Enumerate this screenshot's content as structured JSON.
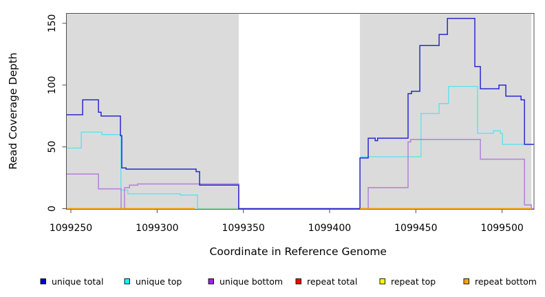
{
  "chart_data": {
    "type": "line",
    "subtype": "step-coverage-plot",
    "title": "",
    "xlabel": "Coordinate in Reference Genome",
    "ylabel": "Read Coverage Depth",
    "xlim": [
      1099247.6,
      1099518.3
    ],
    "ylim": [
      0,
      158
    ],
    "grid": false,
    "x_ticks": [
      1099250,
      1099300,
      1099350,
      1099400,
      1099450,
      1099500
    ],
    "x_tick_labels": [
      "1099250",
      "1099300",
      "1099350",
      "1099400",
      "1099450",
      "1099500"
    ],
    "y_ticks": [
      0,
      50,
      100,
      150
    ],
    "y_tick_labels": [
      "0",
      "50",
      "100",
      "150"
    ],
    "shade_color": "#DBDBDB",
    "box_color": "#4D4D4D",
    "shaded_regions": [
      {
        "x0": 1099247.6,
        "x1": 1099347.3
      },
      {
        "x0": 1099417.6,
        "x1": 1099517.0
      }
    ],
    "series": [
      {
        "name": "repeat total",
        "color": "#E60000",
        "width": 1.2,
        "in_legend": true,
        "note": "all zero; hidden beneath repeat bottom line",
        "segments": [
          [
            [
              1099247.6,
              0
            ],
            [
              1099321.8,
              0
            ]
          ],
          [
            [
              1099417.6,
              0
            ],
            [
              1099517.0,
              0
            ]
          ]
        ]
      },
      {
        "name": "repeat top",
        "color": "#F0F000",
        "width": 1.2,
        "in_legend": true,
        "note": "all zero; hidden beneath repeat bottom line",
        "segments": [
          [
            [
              1099247.6,
              0
            ],
            [
              1099321.8,
              0
            ]
          ],
          [
            [
              1099417.6,
              0
            ],
            [
              1099517.0,
              0
            ]
          ]
        ]
      },
      {
        "name": "unique top",
        "color": "#4FE4EC",
        "width": 1.3,
        "in_legend": true,
        "segments": [
          [
            [
              1099247.6,
              49
            ],
            [
              1099256.0,
              62
            ],
            [
              1099268.0,
              60
            ],
            [
              1099279.0,
              15
            ],
            [
              1099283.0,
              12
            ],
            [
              1099313.4,
              11
            ],
            [
              1099323.4,
              0
            ],
            [
              1099347.3,
              0
            ]
          ],
          [
            [
              1099417.6,
              42
            ],
            [
              1099453.0,
              77
            ],
            [
              1099463.5,
              85
            ],
            [
              1099469.0,
              99
            ],
            [
              1099485.8,
              61
            ],
            [
              1099495.0,
              63
            ],
            [
              1099499.0,
              61
            ],
            [
              1099500.2,
              52
            ],
            [
              1099518.3,
              52
            ]
          ]
        ]
      },
      {
        "name": "zero overlap",
        "color": "#96D89B",
        "width": 1.3,
        "in_legend": false,
        "note": "pale green artifact where zero-depth lines overlap (1099323-1099347)",
        "segments": [
          [
            [
              1099323.4,
              0
            ],
            [
              1099347.3,
              0
            ]
          ]
        ]
      },
      {
        "name": "unique bottom",
        "color": "#B484DC",
        "width": 1.6,
        "in_legend": true,
        "segments": [
          [
            [
              1099247.6,
              28
            ],
            [
              1099266.0,
              16
            ],
            [
              1099279.1,
              0
            ],
            [
              1099281.1,
              17
            ],
            [
              1099284.0,
              19
            ],
            [
              1099288.7,
              20
            ],
            [
              1099347.3,
              0
            ],
            [
              1099422.4,
              17
            ],
            [
              1099445.5,
              54
            ],
            [
              1099447.0,
              56
            ],
            [
              1099487.4,
              40
            ],
            [
              1099513.0,
              3
            ],
            [
              1099517.0,
              0
            ],
            [
              1099518.3,
              0
            ]
          ]
        ]
      },
      {
        "name": "unique total",
        "color": "#2828D0",
        "width": 1.5,
        "in_legend": true,
        "segments": [
          [
            [
              1099247.6,
              76
            ],
            [
              1099256.8,
              88
            ],
            [
              1099266.0,
              78
            ],
            [
              1099267.5,
              75
            ],
            [
              1099278.7,
              59
            ],
            [
              1099279.5,
              33
            ],
            [
              1099282.0,
              32
            ],
            [
              1099322.6,
              30
            ],
            [
              1099324.6,
              19
            ],
            [
              1099347.3,
              0
            ],
            [
              1099417.6,
              41
            ],
            [
              1099422.4,
              57
            ],
            [
              1099426.4,
              55
            ],
            [
              1099427.8,
              57
            ],
            [
              1099445.5,
              93
            ],
            [
              1099447.5,
              95
            ],
            [
              1099452.3,
              132
            ],
            [
              1099463.5,
              141
            ],
            [
              1099468.3,
              154
            ],
            [
              1099484.2,
              115
            ],
            [
              1099487.4,
              97
            ],
            [
              1099498.2,
              100
            ],
            [
              1099502.2,
              91
            ],
            [
              1099511.0,
              88
            ],
            [
              1099513.0,
              52
            ],
            [
              1099518.3,
              52
            ]
          ]
        ]
      },
      {
        "name": "repeat bottom",
        "color": "#FFA200",
        "width": 1.5,
        "in_legend": true,
        "segments": [
          [
            [
              1099247.6,
              0
            ],
            [
              1099321.8,
              0
            ]
          ],
          [
            [
              1099417.6,
              0
            ],
            [
              1099517.0,
              0
            ]
          ]
        ]
      }
    ],
    "legend": {
      "position": "bottom",
      "entries": [
        {
          "label": "unique total",
          "swatch": "#0000CC"
        },
        {
          "label": "unique top",
          "swatch": "#00FFFF"
        },
        {
          "label": "unique bottom",
          "swatch": "#A020F0"
        },
        {
          "label": "repeat total",
          "swatch": "#FF0000"
        },
        {
          "label": "repeat top",
          "swatch": "#FFFF00"
        },
        {
          "label": "repeat bottom",
          "swatch": "#FFA500"
        }
      ]
    }
  }
}
